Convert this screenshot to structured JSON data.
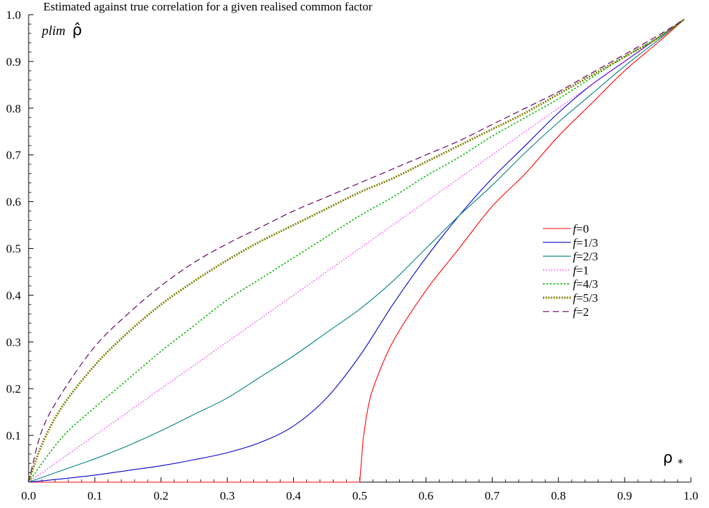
{
  "chart_data": {
    "type": "line",
    "title": "Estimated against true correlation for a given realised common factor",
    "ylabel_prefix": "plim",
    "ylabel_symbol": "ρ̂",
    "xlabel_symbol": "ρ",
    "xlabel_sub": "*",
    "xlim": [
      0,
      1
    ],
    "ylim": [
      0,
      1
    ],
    "x_ticks": [
      "0.0",
      "0.1",
      "0.2",
      "0.3",
      "0.4",
      "0.5",
      "0.6",
      "0.7",
      "0.8",
      "0.9",
      "1.0"
    ],
    "y_ticks": [
      "0.1",
      "0.2",
      "0.3",
      "0.4",
      "0.5",
      "0.6",
      "0.7",
      "0.8",
      "0.9",
      "1.0"
    ],
    "legend_position": "right-middle",
    "series": [
      {
        "name_var": "f",
        "name_val": "=0",
        "color": "#ff0000",
        "dash": "solid",
        "x": [
          0,
          0.5,
          0.505,
          0.51,
          0.52,
          0.55,
          0.6,
          0.65,
          0.7,
          0.75,
          0.8,
          0.85,
          0.9,
          0.95,
          0.99
        ],
        "y": [
          0,
          0,
          0.09,
          0.14,
          0.2,
          0.3,
          0.41,
          0.5,
          0.59,
          0.66,
          0.74,
          0.81,
          0.88,
          0.94,
          0.99
        ]
      },
      {
        "name_var": "f",
        "name_val": "=1/3",
        "color": "#0000cc",
        "dash": "solid",
        "x": [
          0,
          0.05,
          0.1,
          0.15,
          0.2,
          0.25,
          0.3,
          0.35,
          0.4,
          0.45,
          0.5,
          0.55,
          0.6,
          0.65,
          0.7,
          0.75,
          0.8,
          0.85,
          0.9,
          0.95,
          0.99
        ],
        "y": [
          0,
          0.007,
          0.015,
          0.025,
          0.035,
          0.048,
          0.063,
          0.085,
          0.12,
          0.18,
          0.27,
          0.38,
          0.48,
          0.57,
          0.65,
          0.72,
          0.79,
          0.85,
          0.9,
          0.95,
          0.99
        ]
      },
      {
        "name_var": "f",
        "name_val": "=2/3",
        "color": "#008080",
        "dash": "solid",
        "x": [
          0,
          0.05,
          0.1,
          0.15,
          0.2,
          0.25,
          0.3,
          0.35,
          0.4,
          0.45,
          0.5,
          0.55,
          0.6,
          0.65,
          0.7,
          0.75,
          0.8,
          0.85,
          0.9,
          0.95,
          0.99
        ],
        "y": [
          0,
          0.025,
          0.05,
          0.078,
          0.11,
          0.145,
          0.18,
          0.225,
          0.27,
          0.32,
          0.37,
          0.43,
          0.5,
          0.57,
          0.635,
          0.705,
          0.77,
          0.83,
          0.89,
          0.945,
          0.99
        ]
      },
      {
        "name_var": "f",
        "name_val": "=1",
        "color": "#ff00ff",
        "dash": "dot-fine",
        "x": [
          0,
          0.1,
          0.2,
          0.3,
          0.4,
          0.5,
          0.6,
          0.7,
          0.8,
          0.9,
          0.99
        ],
        "y": [
          0,
          0.1,
          0.2,
          0.3,
          0.4,
          0.5,
          0.6,
          0.7,
          0.8,
          0.9,
          0.99
        ]
      },
      {
        "name_var": "f",
        "name_val": "=4/3",
        "color": "#00bb00",
        "dash": "dot-medium",
        "x": [
          0,
          0.05,
          0.1,
          0.15,
          0.2,
          0.25,
          0.3,
          0.35,
          0.4,
          0.45,
          0.5,
          0.55,
          0.6,
          0.65,
          0.7,
          0.75,
          0.8,
          0.85,
          0.9,
          0.95,
          0.99
        ],
        "y": [
          0,
          0.095,
          0.16,
          0.22,
          0.28,
          0.335,
          0.39,
          0.435,
          0.48,
          0.525,
          0.57,
          0.61,
          0.655,
          0.695,
          0.74,
          0.78,
          0.82,
          0.865,
          0.91,
          0.95,
          0.99
        ]
      },
      {
        "name_var": "f",
        "name_val": "=5/3",
        "color": "#808000",
        "dash": "dot-heavy",
        "x": [
          0,
          0.02,
          0.05,
          0.1,
          0.15,
          0.2,
          0.25,
          0.3,
          0.35,
          0.4,
          0.45,
          0.5,
          0.55,
          0.6,
          0.65,
          0.7,
          0.75,
          0.8,
          0.85,
          0.9,
          0.95,
          0.99
        ],
        "y": [
          0,
          0.08,
          0.16,
          0.25,
          0.32,
          0.38,
          0.43,
          0.475,
          0.515,
          0.55,
          0.585,
          0.62,
          0.65,
          0.685,
          0.72,
          0.755,
          0.79,
          0.83,
          0.87,
          0.91,
          0.95,
          0.99
        ]
      },
      {
        "name_var": "f",
        "name_val": "=2",
        "color": "#660066",
        "dash": "dash",
        "x": [
          0,
          0.02,
          0.05,
          0.1,
          0.15,
          0.2,
          0.25,
          0.3,
          0.35,
          0.4,
          0.45,
          0.5,
          0.55,
          0.6,
          0.65,
          0.7,
          0.75,
          0.8,
          0.85,
          0.9,
          0.95,
          0.99
        ],
        "y": [
          0,
          0.11,
          0.19,
          0.29,
          0.36,
          0.42,
          0.47,
          0.51,
          0.545,
          0.58,
          0.61,
          0.64,
          0.67,
          0.7,
          0.73,
          0.765,
          0.8,
          0.835,
          0.875,
          0.915,
          0.955,
          0.99
        ]
      }
    ]
  }
}
